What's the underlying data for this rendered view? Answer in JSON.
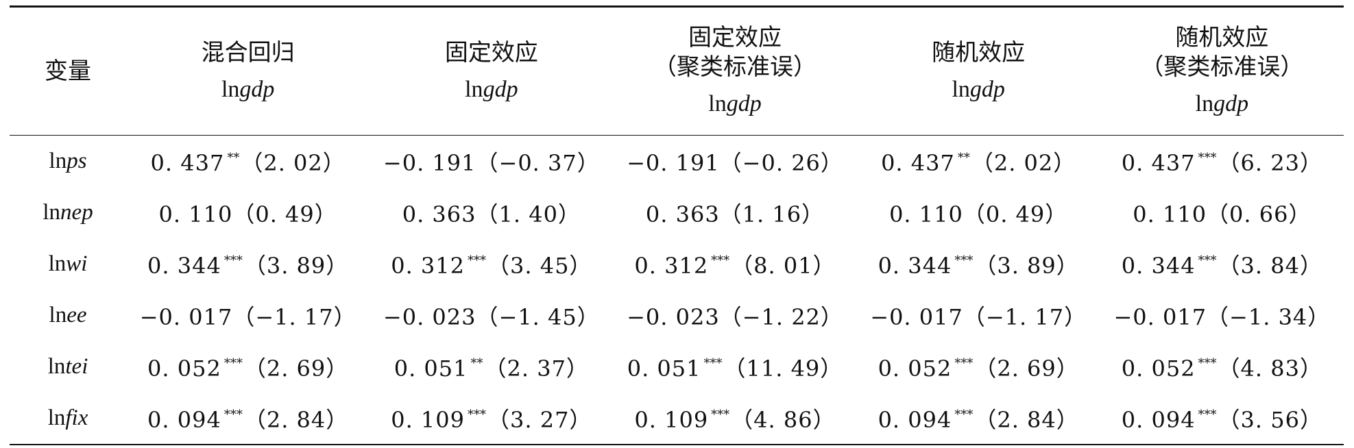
{
  "table": {
    "headers": [
      {
        "lines": [
          "变量"
        ],
        "dep": ""
      },
      {
        "lines": [
          "混合回归"
        ],
        "dep": "gdp"
      },
      {
        "lines": [
          "固定效应"
        ],
        "dep": "gdp"
      },
      {
        "lines": [
          "固定效应",
          "（聚类标准误）"
        ],
        "dep": "gdp"
      },
      {
        "lines": [
          "随机效应"
        ],
        "dep": "gdp"
      },
      {
        "lines": [
          "随机效应",
          "（聚类标准误）"
        ],
        "dep": "gdp"
      }
    ],
    "ln_prefix": "ln",
    "rows": [
      {
        "var": "ps",
        "cells": [
          {
            "coef": "0. 437",
            "stars": "**",
            "t": "（2. 02）"
          },
          {
            "coef": "−0. 191",
            "stars": "",
            "t": "（−0. 37）"
          },
          {
            "coef": "−0. 191",
            "stars": "",
            "t": "（−0. 26）"
          },
          {
            "coef": "0. 437",
            "stars": "**",
            "t": "（2. 02）"
          },
          {
            "coef": "0. 437",
            "stars": "***",
            "t": "（6. 23）"
          }
        ]
      },
      {
        "var": "nep",
        "cells": [
          {
            "coef": "0. 110",
            "stars": "",
            "t": "（0. 49）"
          },
          {
            "coef": "0. 363",
            "stars": "",
            "t": "（1. 40）"
          },
          {
            "coef": "0. 363",
            "stars": "",
            "t": "（1. 16）"
          },
          {
            "coef": "0. 110",
            "stars": "",
            "t": "（0. 49）"
          },
          {
            "coef": "0. 110",
            "stars": "",
            "t": "（0. 66）"
          }
        ]
      },
      {
        "var": "wi",
        "cells": [
          {
            "coef": "0. 344",
            "stars": "***",
            "t": "（3. 89）"
          },
          {
            "coef": "0. 312",
            "stars": "***",
            "t": "（3. 45）"
          },
          {
            "coef": "0. 312",
            "stars": "***",
            "t": "（8. 01）"
          },
          {
            "coef": "0. 344",
            "stars": "***",
            "t": "（3. 89）"
          },
          {
            "coef": "0. 344",
            "stars": "***",
            "t": "（3. 84）"
          }
        ]
      },
      {
        "var": "ee",
        "cells": [
          {
            "coef": "−0. 017",
            "stars": "",
            "t": "（−1. 17）"
          },
          {
            "coef": "−0. 023",
            "stars": "",
            "t": "（−1. 45）"
          },
          {
            "coef": "−0. 023",
            "stars": "",
            "t": "（−1. 22）"
          },
          {
            "coef": "−0. 017",
            "stars": "",
            "t": "（−1. 17）"
          },
          {
            "coef": "−0. 017",
            "stars": "",
            "t": "（−1. 34）"
          }
        ]
      },
      {
        "var": "tei",
        "cells": [
          {
            "coef": "0. 052",
            "stars": "***",
            "t": "（2. 69）"
          },
          {
            "coef": "0. 051",
            "stars": "**",
            "t": "（2. 37）"
          },
          {
            "coef": "0. 051",
            "stars": "***",
            "t": "（11. 49）"
          },
          {
            "coef": "0. 052",
            "stars": "***",
            "t": "（2. 69）"
          },
          {
            "coef": "0. 052",
            "stars": "***",
            "t": "（4. 83）"
          }
        ]
      },
      {
        "var": "fix",
        "cells": [
          {
            "coef": "0. 094",
            "stars": "***",
            "t": "（2. 84）"
          },
          {
            "coef": "0. 109",
            "stars": "***",
            "t": "（3. 27）"
          },
          {
            "coef": "0. 109",
            "stars": "***",
            "t": "（4. 86）"
          },
          {
            "coef": "0. 094",
            "stars": "***",
            "t": "（2. 84）"
          },
          {
            "coef": "0. 094",
            "stars": "***",
            "t": "（3. 56）"
          }
        ]
      }
    ]
  }
}
